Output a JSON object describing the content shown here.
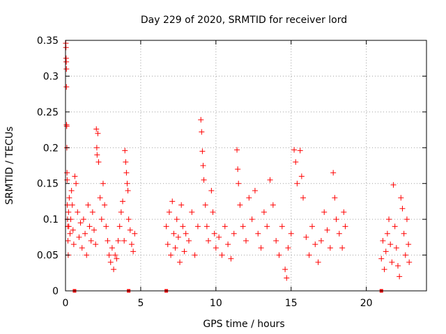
{
  "chart_data": {
    "type": "scatter",
    "title": "Day 229 of 2020, SRMTID for receiver lord",
    "xlabel": "GPS time / hours",
    "ylabel": "SRMTID / TECUs",
    "xlim": [
      0,
      24
    ],
    "ylim": [
      0,
      0.35
    ],
    "xticks": [
      0,
      5,
      10,
      15,
      20
    ],
    "yticks": [
      0,
      0.05,
      0.1,
      0.15,
      0.2,
      0.25,
      0.3,
      0.35
    ],
    "xtick_labels": [
      "0",
      "5",
      "10",
      "15",
      "20"
    ],
    "ytick_labels": [
      "0",
      "0.05",
      "0.1",
      "0.15",
      "0.2",
      "0.25",
      "0.3",
      "0.35"
    ],
    "grid": true,
    "marker": "+",
    "color": "#ff0000",
    "zero_markers_x": [
      0.6,
      4.2,
      6.7,
      21.0
    ],
    "series": [
      {
        "name": "SRMTID",
        "points": [
          [
            0.02,
            0.346
          ],
          [
            0.03,
            0.34
          ],
          [
            0.04,
            0.325
          ],
          [
            0.05,
            0.32
          ],
          [
            0.06,
            0.31
          ],
          [
            0.06,
            0.285
          ],
          [
            0.07,
            0.232
          ],
          [
            0.08,
            0.23
          ],
          [
            0.09,
            0.2
          ],
          [
            0.1,
            0.165
          ],
          [
            0.11,
            0.155
          ],
          [
            0.12,
            0.12
          ],
          [
            0.13,
            0.1
          ],
          [
            0.15,
            0.09
          ],
          [
            0.16,
            0.07
          ],
          [
            0.18,
            0.05
          ],
          [
            0.2,
            0.11
          ],
          [
            0.22,
            0.09
          ],
          [
            0.25,
            0.13
          ],
          [
            0.3,
            0.08
          ],
          [
            0.35,
            0.1
          ],
          [
            0.4,
            0.14
          ],
          [
            0.45,
            0.12
          ],
          [
            0.5,
            0.085
          ],
          [
            0.55,
            0.065
          ],
          [
            0.62,
            0.16
          ],
          [
            0.7,
            0.15
          ],
          [
            0.8,
            0.11
          ],
          [
            0.9,
            0.075
          ],
          [
            1.0,
            0.095
          ],
          [
            1.1,
            0.06
          ],
          [
            1.2,
            0.1
          ],
          [
            1.3,
            0.08
          ],
          [
            1.4,
            0.05
          ],
          [
            1.5,
            0.12
          ],
          [
            1.6,
            0.09
          ],
          [
            1.7,
            0.07
          ],
          [
            1.8,
            0.11
          ],
          [
            1.9,
            0.085
          ],
          [
            2.0,
            0.065
          ],
          [
            2.05,
            0.226
          ],
          [
            2.08,
            0.2
          ],
          [
            2.1,
            0.19
          ],
          [
            2.15,
            0.22
          ],
          [
            2.2,
            0.18
          ],
          [
            2.3,
            0.13
          ],
          [
            2.4,
            0.1
          ],
          [
            2.5,
            0.15
          ],
          [
            2.6,
            0.12
          ],
          [
            2.7,
            0.09
          ],
          [
            2.8,
            0.07
          ],
          [
            2.9,
            0.05
          ],
          [
            3.0,
            0.04
          ],
          [
            3.1,
            0.06
          ],
          [
            3.2,
            0.03
          ],
          [
            3.3,
            0.05
          ],
          [
            3.4,
            0.045
          ],
          [
            3.5,
            0.07
          ],
          [
            3.6,
            0.09
          ],
          [
            3.7,
            0.11
          ],
          [
            3.8,
            0.125
          ],
          [
            3.9,
            0.07
          ],
          [
            3.95,
            0.196
          ],
          [
            4.0,
            0.18
          ],
          [
            4.05,
            0.165
          ],
          [
            4.1,
            0.15
          ],
          [
            4.15,
            0.14
          ],
          [
            4.2,
            0.1
          ],
          [
            4.3,
            0.085
          ],
          [
            4.4,
            0.065
          ],
          [
            4.5,
            0.055
          ],
          [
            4.6,
            0.08
          ],
          [
            6.7,
            0.09
          ],
          [
            6.8,
            0.065
          ],
          [
            6.9,
            0.11
          ],
          [
            7.0,
            0.05
          ],
          [
            7.1,
            0.125
          ],
          [
            7.2,
            0.08
          ],
          [
            7.3,
            0.06
          ],
          [
            7.4,
            0.1
          ],
          [
            7.5,
            0.075
          ],
          [
            7.6,
            0.04
          ],
          [
            7.7,
            0.12
          ],
          [
            7.8,
            0.09
          ],
          [
            7.9,
            0.055
          ],
          [
            8.0,
            0.08
          ],
          [
            8.2,
            0.07
          ],
          [
            8.4,
            0.11
          ],
          [
            8.6,
            0.05
          ],
          [
            8.8,
            0.09
          ],
          [
            9.0,
            0.239
          ],
          [
            9.05,
            0.222
          ],
          [
            9.1,
            0.195
          ],
          [
            9.15,
            0.175
          ],
          [
            9.2,
            0.155
          ],
          [
            9.3,
            0.12
          ],
          [
            9.4,
            0.09
          ],
          [
            9.5,
            0.07
          ],
          [
            9.7,
            0.14
          ],
          [
            9.8,
            0.11
          ],
          [
            9.9,
            0.08
          ],
          [
            10.0,
            0.06
          ],
          [
            10.2,
            0.075
          ],
          [
            10.4,
            0.05
          ],
          [
            10.6,
            0.09
          ],
          [
            10.8,
            0.065
          ],
          [
            11.0,
            0.045
          ],
          [
            11.2,
            0.08
          ],
          [
            11.4,
            0.197
          ],
          [
            11.45,
            0.17
          ],
          [
            11.5,
            0.15
          ],
          [
            11.6,
            0.12
          ],
          [
            11.8,
            0.09
          ],
          [
            12.0,
            0.07
          ],
          [
            12.2,
            0.13
          ],
          [
            12.4,
            0.1
          ],
          [
            12.6,
            0.14
          ],
          [
            12.8,
            0.08
          ],
          [
            13.0,
            0.06
          ],
          [
            13.2,
            0.11
          ],
          [
            13.4,
            0.09
          ],
          [
            13.6,
            0.155
          ],
          [
            13.8,
            0.12
          ],
          [
            14.0,
            0.07
          ],
          [
            14.2,
            0.05
          ],
          [
            14.4,
            0.09
          ],
          [
            14.6,
            0.03
          ],
          [
            14.7,
            0.018
          ],
          [
            14.8,
            0.06
          ],
          [
            15.0,
            0.08
          ],
          [
            15.2,
            0.197
          ],
          [
            15.3,
            0.18
          ],
          [
            15.4,
            0.15
          ],
          [
            15.6,
            0.196
          ],
          [
            15.7,
            0.16
          ],
          [
            15.8,
            0.13
          ],
          [
            16.0,
            0.075
          ],
          [
            16.2,
            0.05
          ],
          [
            16.4,
            0.09
          ],
          [
            16.6,
            0.065
          ],
          [
            16.8,
            0.04
          ],
          [
            17.0,
            0.07
          ],
          [
            17.2,
            0.11
          ],
          [
            17.4,
            0.085
          ],
          [
            17.6,
            0.06
          ],
          [
            17.8,
            0.165
          ],
          [
            17.9,
            0.13
          ],
          [
            18.0,
            0.1
          ],
          [
            18.2,
            0.08
          ],
          [
            18.4,
            0.06
          ],
          [
            18.5,
            0.11
          ],
          [
            18.6,
            0.09
          ],
          [
            21.0,
            0.045
          ],
          [
            21.1,
            0.07
          ],
          [
            21.2,
            0.03
          ],
          [
            21.3,
            0.055
          ],
          [
            21.4,
            0.08
          ],
          [
            21.5,
            0.1
          ],
          [
            21.6,
            0.065
          ],
          [
            21.7,
            0.04
          ],
          [
            21.8,
            0.148
          ],
          [
            21.9,
            0.09
          ],
          [
            22.0,
            0.06
          ],
          [
            22.1,
            0.035
          ],
          [
            22.2,
            0.02
          ],
          [
            22.3,
            0.13
          ],
          [
            22.4,
            0.115
          ],
          [
            22.5,
            0.08
          ],
          [
            22.6,
            0.05
          ],
          [
            22.7,
            0.1
          ],
          [
            22.8,
            0.065
          ],
          [
            22.85,
            0.04
          ]
        ]
      }
    ]
  }
}
